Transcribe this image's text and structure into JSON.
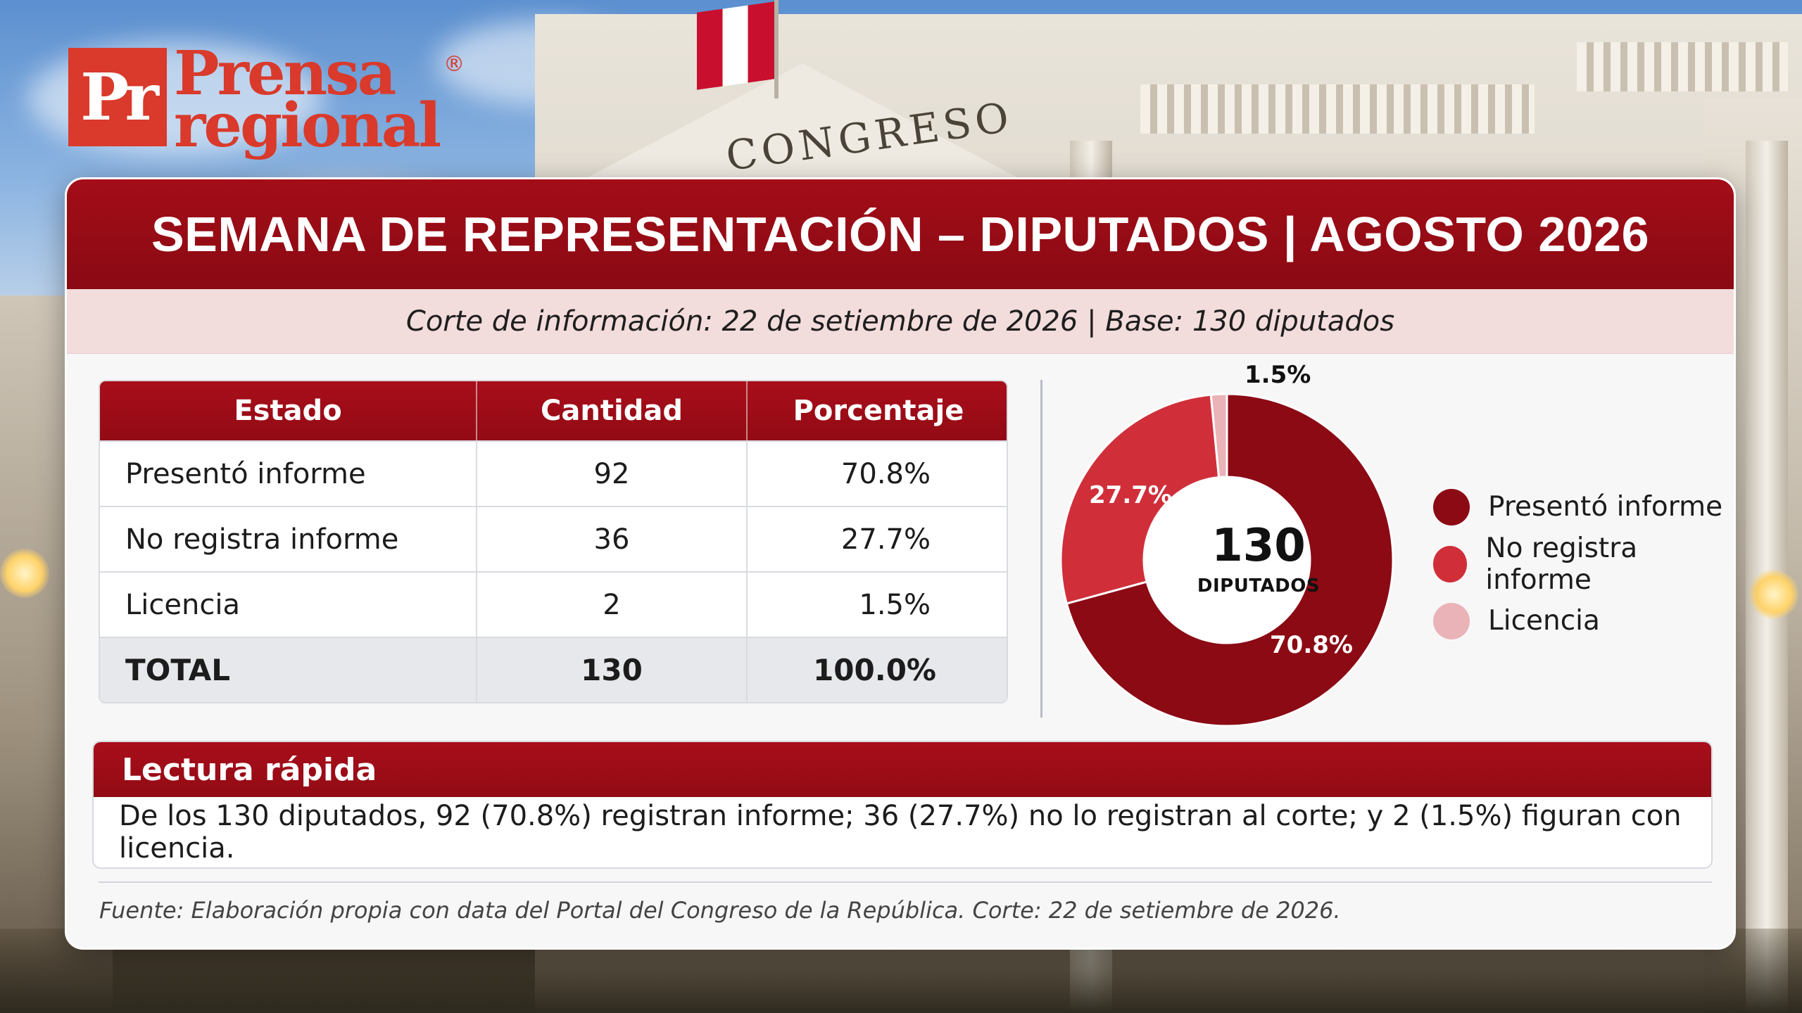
{
  "logo": {
    "mark": "Pr",
    "line1": "Prensa",
    "line2": "regional",
    "registered": "®"
  },
  "background": {
    "engraving": "CONGRESO"
  },
  "header": {
    "title": "SEMANA DE REPRESENTACIÓN – DIPUTADOS | AGOSTO 2026",
    "subtitle": "Corte de información: 22 de setiembre de 2026 | Base: 130 diputados"
  },
  "table": {
    "columns": [
      "Estado",
      "Cantidad",
      "Porcentaje"
    ],
    "rows": [
      {
        "estado": "Presentó informe",
        "cantidad": "92",
        "porcentaje": "70.8%"
      },
      {
        "estado": "No registra informe",
        "cantidad": "36",
        "porcentaje": "27.7%"
      },
      {
        "estado": "Licencia",
        "cantidad": "2",
        "porcentaje": "1.5%"
      }
    ],
    "total": {
      "estado": "TOTAL",
      "cantidad": "130",
      "porcentaje": "100.0%"
    }
  },
  "chart_data": {
    "type": "pie",
    "center_value": "130",
    "center_label": "DIPUTADOS",
    "series": [
      {
        "name": "Presentó informe",
        "value": 92,
        "percent_label": "70.8%",
        "color": "#8b0a14"
      },
      {
        "name": "No registra informe",
        "value": 36,
        "percent_label": "27.7%",
        "color": "#d02f3a"
      },
      {
        "name": "Licencia",
        "value": 2,
        "percent_label": "1.5%",
        "color": "#eab3b8"
      }
    ],
    "legend_position": "right"
  },
  "quick_read": {
    "title": "Lectura rápida",
    "text": "De los 130 diputados, 92 (70.8%) registran informe; 36 (27.7%) no lo registran al corte; y 2 (1.5%) figuran con licencia."
  },
  "source": "Fuente: Elaboración propia con data del Portal del Congreso de la República. Corte: 22 de setiembre de 2026.",
  "colors": {
    "brand_red": "#d93a2b",
    "header_red": "#a30d18",
    "subbar_pink": "#f3dcdc"
  }
}
